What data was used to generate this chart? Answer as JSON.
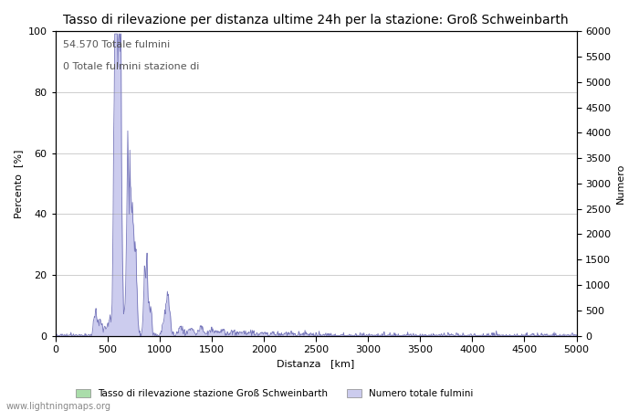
{
  "title": "Tasso di rilevazione per distanza ultime 24h per la stazione: Groß Schweinbarth",
  "xlabel": "Distanza   [km]",
  "ylabel_left": "Percento  [%]",
  "ylabel_right": "Numero",
  "annotation_line1": "54.570 Totale fulmini",
  "annotation_line2": "0 Totale fulmini stazione di",
  "legend_label1": "Tasso di rilevazione stazione Groß Schweinbarth",
  "legend_label2": "Numero totale fulmini",
  "watermark": "www.lightningmaps.org",
  "xlim": [
    0,
    5000
  ],
  "ylim_left": [
    0,
    100
  ],
  "ylim_right": [
    0,
    6000
  ],
  "xticks": [
    0,
    500,
    1000,
    1500,
    2000,
    2500,
    3000,
    3500,
    4000,
    4500,
    5000
  ],
  "yticks_left": [
    0,
    20,
    40,
    60,
    80,
    100
  ],
  "yticks_right": [
    0,
    500,
    1000,
    1500,
    2000,
    2500,
    3000,
    3500,
    4000,
    4500,
    5000,
    5500,
    6000
  ],
  "grid_color": "#aaaaaa",
  "bg_color": "#ffffff",
  "line_color": "#7777bb",
  "fill_color_blue": "#ccccee",
  "fill_color_green": "#aaddaa",
  "title_fontsize": 10,
  "axis_fontsize": 8,
  "tick_fontsize": 8,
  "annotation_fontsize": 8
}
